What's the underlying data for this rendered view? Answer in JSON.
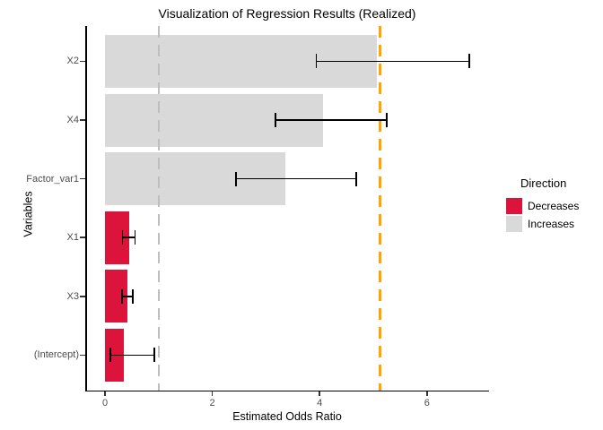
{
  "chart_data": {
    "type": "bar",
    "orientation": "horizontal",
    "title": "Visualization of Regression Results (Realized)",
    "xlabel": "Estimated Odds Ratio",
    "ylabel": "Variables",
    "x_ticks": [
      "0",
      "2",
      "4",
      "6"
    ],
    "x_tick_values": [
      0,
      2,
      4,
      6
    ],
    "xlim": [
      -0.35,
      7.15
    ],
    "categories": [
      "X2",
      "X4",
      "Factor_var1",
      "X1",
      "X3",
      "(Intercept)"
    ],
    "series": [
      {
        "name": "Estimated Odds Ratio",
        "values": [
          5.06,
          4.06,
          3.36,
          0.45,
          0.42,
          0.35
        ],
        "ci_low": [
          3.94,
          3.18,
          2.44,
          0.33,
          0.32,
          0.1
        ],
        "ci_high": [
          6.79,
          5.25,
          4.68,
          0.56,
          0.52,
          0.92
        ],
        "direction": [
          "Increases",
          "Increases",
          "Increases",
          "Decreases",
          "Decreases",
          "Decreases"
        ]
      }
    ],
    "reference_lines": [
      {
        "x": 1.0,
        "style": "dashed",
        "color": "#BEBEBE",
        "width": 2
      },
      {
        "x": 5.12,
        "style": "dashed",
        "color": "#FFA500",
        "width": 3
      }
    ],
    "legend": {
      "title": "Direction",
      "position": "right",
      "entries": [
        {
          "label": "Decreases",
          "color": "#DC143C"
        },
        {
          "label": "Increases",
          "color": "#D9D9D9"
        }
      ]
    },
    "grid": false,
    "colors": {
      "Decreases": "#DC143C",
      "Increases": "#D9D9D9"
    }
  }
}
